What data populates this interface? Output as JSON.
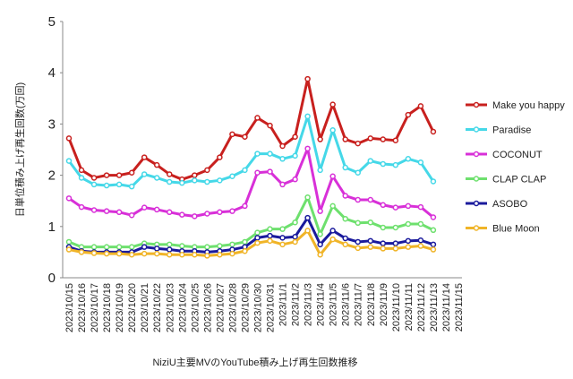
{
  "chart_data": {
    "type": "line",
    "xlabel": "NiziU主要MVのYouTube積み上げ再生回数推移",
    "ylabel": "日単位積み上げ再生回数(万回)",
    "categories": [
      "2023/10/15",
      "2023/10/16",
      "2023/10/17",
      "2023/10/18",
      "2023/10/19",
      "2023/10/20",
      "2023/10/21",
      "2023/10/22",
      "2023/10/23",
      "2023/10/24",
      "2023/10/25",
      "2023/10/26",
      "2023/10/27",
      "2023/10/28",
      "2023/10/29",
      "2023/10/30",
      "2023/10/31",
      "2023/11/1",
      "2023/11/2",
      "2023/11/3",
      "2023/11/4",
      "2023/11/5",
      "2023/11/6",
      "2023/11/7",
      "2023/11/8",
      "2023/11/9",
      "2023/11/10",
      "2023/11/11",
      "2023/11/12",
      "2023/11/13",
      "2023/11/14",
      "2023/11/15"
    ],
    "series": [
      {
        "name": "Make you happy",
        "color": "#c8201e",
        "values": [
          2.72,
          2.1,
          1.95,
          2.0,
          2.0,
          2.05,
          2.35,
          2.2,
          2.02,
          1.92,
          2.0,
          2.1,
          2.35,
          2.8,
          2.75,
          3.12,
          2.97,
          2.57,
          2.75,
          3.88,
          2.7,
          3.38,
          2.7,
          2.62,
          2.72,
          2.7,
          2.68,
          3.18,
          3.35,
          2.85,
          null,
          null
        ]
      },
      {
        "name": "Paradise",
        "color": "#45d8e8",
        "values": [
          2.28,
          1.95,
          1.82,
          1.8,
          1.82,
          1.78,
          2.02,
          1.95,
          1.87,
          1.85,
          1.9,
          1.87,
          1.9,
          1.98,
          2.1,
          2.42,
          2.42,
          2.32,
          2.38,
          3.15,
          2.1,
          2.88,
          2.15,
          2.05,
          2.28,
          2.22,
          2.2,
          2.32,
          2.25,
          1.88,
          null,
          null
        ]
      },
      {
        "name": "COCONUT",
        "color": "#d830d8",
        "values": [
          1.55,
          1.38,
          1.32,
          1.3,
          1.28,
          1.22,
          1.37,
          1.33,
          1.28,
          1.23,
          1.2,
          1.25,
          1.28,
          1.3,
          1.4,
          2.05,
          2.07,
          1.82,
          1.92,
          2.52,
          1.3,
          1.98,
          1.6,
          1.52,
          1.52,
          1.42,
          1.37,
          1.4,
          1.38,
          1.18,
          null,
          null
        ]
      },
      {
        "name": "CLAP CLAP",
        "color": "#6ee06e",
        "values": [
          0.7,
          0.6,
          0.6,
          0.6,
          0.6,
          0.6,
          0.67,
          0.65,
          0.65,
          0.62,
          0.6,
          0.6,
          0.62,
          0.65,
          0.7,
          0.88,
          0.95,
          0.95,
          1.08,
          1.57,
          0.85,
          1.4,
          1.15,
          1.07,
          1.08,
          0.98,
          0.98,
          1.05,
          1.05,
          0.93,
          null,
          null
        ]
      },
      {
        "name": "ASOBO",
        "color": "#1a1a9c",
        "values": [
          0.6,
          0.52,
          0.5,
          0.5,
          0.5,
          0.5,
          0.6,
          0.57,
          0.55,
          0.52,
          0.52,
          0.5,
          0.52,
          0.55,
          0.6,
          0.78,
          0.82,
          0.78,
          0.8,
          1.17,
          0.65,
          0.92,
          0.77,
          0.7,
          0.72,
          0.67,
          0.67,
          0.72,
          0.73,
          0.65,
          null,
          null
        ]
      },
      {
        "name": "Blue Moon",
        "color": "#f0b428",
        "values": [
          0.55,
          0.5,
          0.48,
          0.47,
          0.47,
          0.45,
          0.47,
          0.47,
          0.45,
          0.45,
          0.45,
          0.43,
          0.45,
          0.47,
          0.52,
          0.68,
          0.72,
          0.65,
          0.7,
          0.92,
          0.45,
          0.75,
          0.65,
          0.58,
          0.6,
          0.57,
          0.57,
          0.6,
          0.62,
          0.55,
          null,
          null
        ]
      }
    ],
    "ylim": [
      0,
      5
    ],
    "yticks": [
      0,
      1,
      2,
      3,
      4,
      5
    ],
    "legend": "right"
  }
}
